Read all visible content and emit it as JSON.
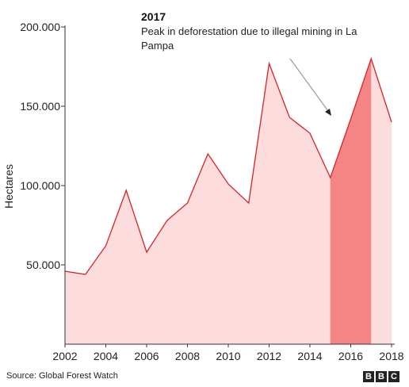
{
  "chart_data": {
    "type": "area",
    "x": [
      2002,
      2003,
      2004,
      2005,
      2006,
      2007,
      2008,
      2009,
      2010,
      2011,
      2012,
      2013,
      2014,
      2015,
      2016,
      2017,
      2018
    ],
    "values": [
      46000,
      44000,
      62000,
      97000,
      58000,
      78000,
      89000,
      120000,
      101000,
      89000,
      177000,
      143000,
      133000,
      105000,
      142000,
      180000,
      140000
    ],
    "ylabel": "Hectares",
    "ylim": [
      0,
      200000
    ],
    "xlim": [
      2002,
      2018
    ],
    "y_ticks": [
      "50.000",
      "100.000",
      "150.000",
      "200.000"
    ],
    "x_ticks": [
      "2002",
      "2004",
      "2006",
      "2008",
      "2010",
      "2012",
      "2014",
      "2016",
      "2018"
    ],
    "highlight": {
      "from": 2015,
      "to": 2017
    },
    "annotation": {
      "title": "2017",
      "text_lines": [
        "Peak in deforestation due to illegal mining in La",
        "Pampa"
      ]
    },
    "colors": {
      "area": "#fcdcdc",
      "highlight": "#f58585",
      "line": "#d62424",
      "axis": "#333333"
    }
  },
  "footer": {
    "source": "Source: Global Forest Watch",
    "logo": [
      "B",
      "B",
      "C"
    ]
  }
}
